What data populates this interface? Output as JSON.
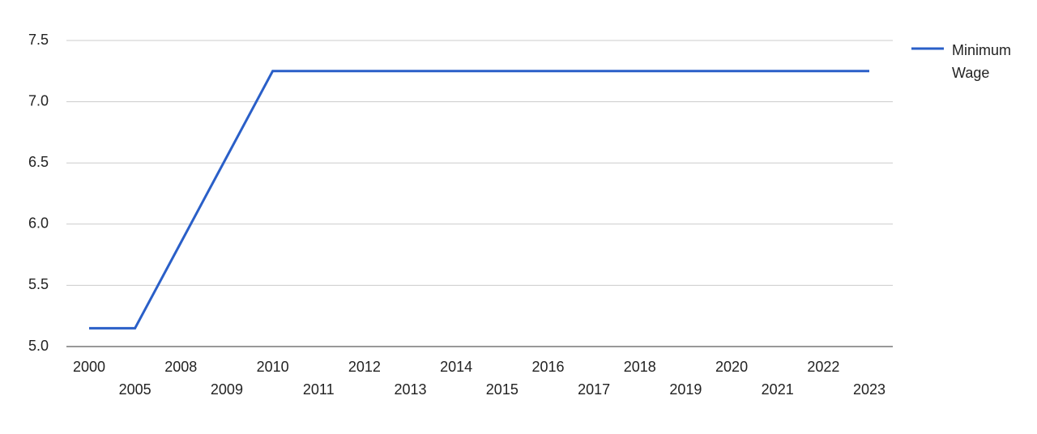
{
  "chart_data": {
    "type": "line",
    "categories": [
      "2000",
      "2005",
      "2008",
      "2009",
      "2010",
      "2011",
      "2012",
      "2013",
      "2014",
      "2015",
      "2016",
      "2017",
      "2018",
      "2019",
      "2020",
      "2021",
      "2022",
      "2023"
    ],
    "series": [
      {
        "name": "Minimum Wage",
        "color": "#2a5fc8",
        "values": [
          5.15,
          5.15,
          5.85,
          6.55,
          7.25,
          7.25,
          7.25,
          7.25,
          7.25,
          7.25,
          7.25,
          7.25,
          7.25,
          7.25,
          7.25,
          7.25,
          7.25,
          7.25
        ]
      }
    ],
    "ylim": [
      5,
      7.5
    ],
    "yticks": [
      {
        "value": 5,
        "label": "5.0"
      },
      5.5,
      {
        "value": 6,
        "label": "6.0"
      },
      6.5,
      {
        "value": 7,
        "label": "7.0"
      },
      7.5
    ],
    "grid": true,
    "legend": "right"
  }
}
